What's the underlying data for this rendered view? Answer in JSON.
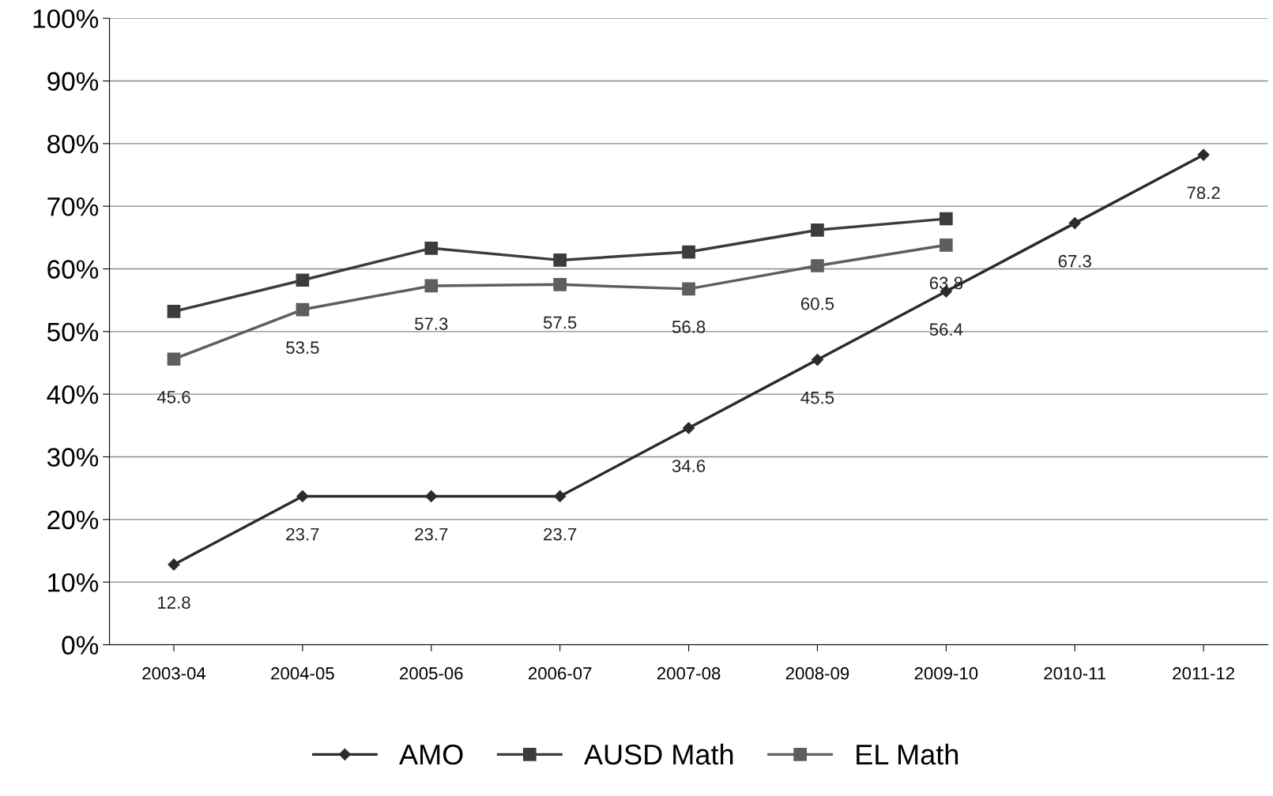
{
  "chart_data": {
    "type": "line",
    "categories": [
      "2003-04",
      "2004-05",
      "2005-06",
      "2006-07",
      "2007-08",
      "2008-09",
      "2009-10",
      "2010-11",
      "2011-12"
    ],
    "series": [
      {
        "name": "AMO",
        "color": "#2b2b2b",
        "marker": "diamond",
        "values": [
          12.8,
          23.7,
          23.7,
          23.7,
          34.6,
          45.5,
          56.4,
          67.3,
          78.2
        ],
        "value_labels": [
          "12.8",
          "23.7",
          "23.7",
          "23.7",
          "34.6",
          "45.5",
          "56.4",
          "67.3",
          "78.2"
        ]
      },
      {
        "name": "AUSD Math",
        "color": "#3c3c3c",
        "marker": "square",
        "values": [
          53.2,
          58.2,
          63.3,
          61.4,
          62.7,
          66.2,
          68.0,
          null,
          null
        ]
      },
      {
        "name": "EL Math",
        "color": "#5e5e5e",
        "marker": "square",
        "values": [
          45.6,
          53.5,
          57.3,
          57.5,
          56.8,
          60.5,
          63.8,
          null,
          null
        ],
        "value_labels": [
          "45.6",
          "53.5",
          "57.3",
          "57.5",
          "56.8",
          "60.5",
          "63.8",
          null,
          null
        ]
      }
    ],
    "ylim": [
      0,
      100
    ],
    "yticks": [
      {
        "value": 0,
        "label": "0%"
      },
      {
        "value": 10,
        "label": "10%"
      },
      {
        "value": 20,
        "label": "20%"
      },
      {
        "value": 30,
        "label": "30%"
      },
      {
        "value": 40,
        "label": "40%"
      },
      {
        "value": 50,
        "label": "50%"
      },
      {
        "value": 60,
        "label": "60%"
      },
      {
        "value": 70,
        "label": "70%"
      },
      {
        "value": 80,
        "label": "80%"
      },
      {
        "value": 90,
        "label": "90%"
      },
      {
        "value": 100,
        "label": "100%"
      }
    ],
    "grid": "y",
    "legend": "bottom",
    "line_style": "solid"
  }
}
